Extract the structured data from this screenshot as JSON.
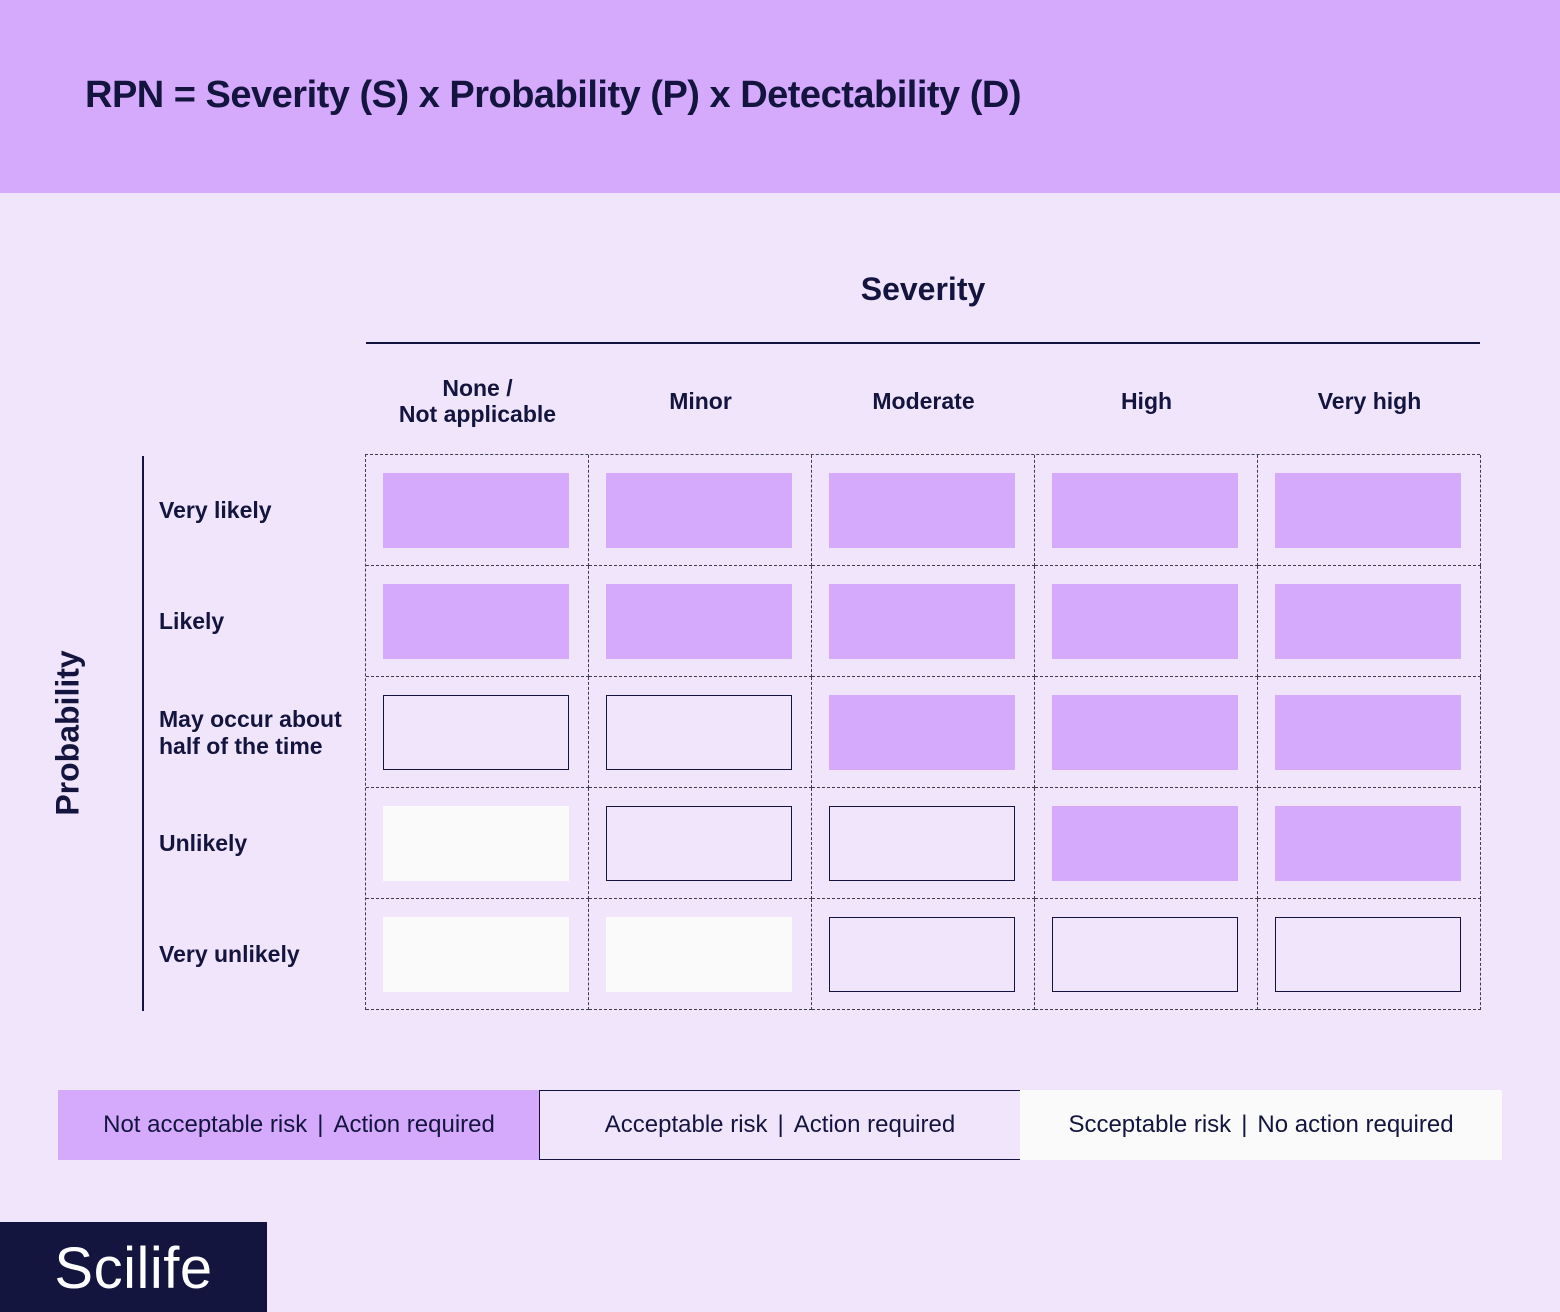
{
  "formula": "RPN = Severity (S) x Probability (P) x Detectability (D)",
  "severity_axis": {
    "title": "Severity",
    "levels": [
      "None /\nNot applicable",
      "Minor",
      "Moderate",
      "High",
      "Very high"
    ]
  },
  "probability_axis": {
    "title": "Probability",
    "levels": [
      "Very likely",
      "Likely",
      "May occur about\nhalf of the time",
      "Unlikely",
      "Very unlikely"
    ]
  },
  "matrix": [
    [
      "not_acceptable",
      "not_acceptable",
      "not_acceptable",
      "not_acceptable",
      "not_acceptable"
    ],
    [
      "not_acceptable",
      "not_acceptable",
      "not_acceptable",
      "not_acceptable",
      "not_acceptable"
    ],
    [
      "acceptable_action",
      "acceptable_action",
      "not_acceptable",
      "not_acceptable",
      "not_acceptable"
    ],
    [
      "acceptable_no_action",
      "acceptable_action",
      "acceptable_action",
      "not_acceptable",
      "not_acceptable"
    ],
    [
      "acceptable_no_action",
      "acceptable_no_action",
      "acceptable_action",
      "acceptable_action",
      "acceptable_action"
    ]
  ],
  "legend": [
    {
      "key": "not_acceptable",
      "risk": "Not acceptable risk",
      "action": "Action required",
      "color": "#d5aafd"
    },
    {
      "key": "acceptable_action",
      "risk": "Acceptable risk",
      "action": "Action required",
      "color": "#f1e5fc"
    },
    {
      "key": "acceptable_no_action",
      "risk": "Scceptable risk",
      "action": "No action required",
      "color": "#fafafa"
    }
  ],
  "brand": {
    "logo_text": "Scilife"
  },
  "colors": {
    "accent": "#d5aafd",
    "background": "#f1e5fc",
    "ink": "#14153f"
  }
}
